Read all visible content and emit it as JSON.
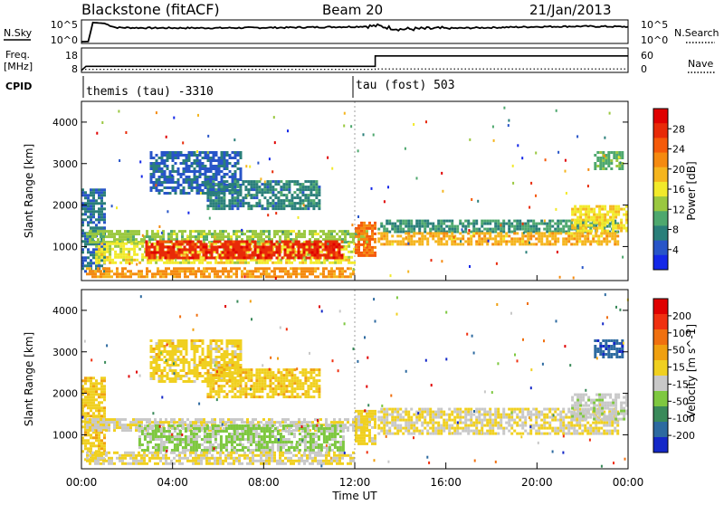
{
  "header": {
    "site": "Blackstone (fitACF)",
    "beam": "Beam 20",
    "date": "21/Jan/2013"
  },
  "strip_labels": {
    "nsky": "N.Sky",
    "nsearch": "N.Search",
    "freq_line1": "Freq.",
    "freq_line2": "[MHz]",
    "nave": "Nave",
    "cpid": "CPID"
  },
  "noise_panel": {
    "left_ticks": [
      "10^5",
      "10^0"
    ],
    "right_ticks": [
      "10^5",
      "10^0"
    ]
  },
  "freq_panel": {
    "left_ticks": [
      "18",
      "8"
    ],
    "right_ticks": [
      "60",
      "0"
    ]
  },
  "cpid_panel": {
    "segments": [
      {
        "label": "themis (tau) -3310",
        "start_hour": 0.0
      },
      {
        "label": "tau (fost) 503",
        "start_hour": 12.0
      }
    ]
  },
  "axes": {
    "ylabel": "Slant Range [km]",
    "xlabel": "Time UT",
    "x_tick_labels": [
      "00:00",
      "04:00",
      "08:00",
      "12:00",
      "16:00",
      "20:00",
      "00:00"
    ],
    "y_tick_labels": [
      "1000",
      "2000",
      "3000",
      "4000"
    ]
  },
  "colorbars": {
    "power": {
      "label": "Power [dB]",
      "tick_labels": [
        "4",
        "8",
        "12",
        "16",
        "20",
        "24",
        "28"
      ],
      "colors": [
        "#1428e8",
        "#2855c8",
        "#2a7f7a",
        "#4ea86e",
        "#9ac840",
        "#f2ea2a",
        "#f5b51e",
        "#f58a10",
        "#f55a0a",
        "#e82a08",
        "#e00000"
      ]
    },
    "velocity": {
      "label": "Velocity [m s^-1]",
      "tick_labels": [
        "200",
        "100",
        "50",
        "15",
        "-15",
        "-50",
        "-100",
        "-200"
      ],
      "colors": [
        "#1428c8",
        "#2d6aa0",
        "#3a8a5a",
        "#7ec840",
        "#c8c8c8",
        "#f0d020",
        "#f0a010",
        "#f07010",
        "#f03010",
        "#e00000"
      ]
    }
  },
  "chart_data": [
    {
      "type": "line",
      "name": "noise",
      "x_range": [
        0,
        24
      ],
      "points": [
        [
          0,
          0.2
        ],
        [
          0.3,
          0.25
        ],
        [
          0.5,
          4.8
        ],
        [
          1.0,
          4.6
        ],
        [
          1.5,
          3.6
        ],
        [
          3,
          3.5
        ],
        [
          6,
          3.5
        ],
        [
          9,
          3.6
        ],
        [
          12,
          3.8
        ],
        [
          13,
          4.0
        ],
        [
          14,
          3.2
        ],
        [
          16,
          3.4
        ],
        [
          18,
          3.6
        ],
        [
          20,
          3.8
        ],
        [
          22,
          3.9
        ],
        [
          24,
          3.8
        ]
      ]
    },
    {
      "type": "line",
      "name": "frequency",
      "x_range": [
        0,
        24
      ],
      "points": [
        [
          0,
          8.5
        ],
        [
          0.2,
          10.5
        ],
        [
          12.9,
          10.5
        ],
        [
          12.9,
          15.5
        ],
        [
          24,
          15.5
        ]
      ],
      "nave_points": [
        [
          0,
          9
        ],
        [
          12.9,
          9
        ],
        [
          12.9,
          9.2
        ],
        [
          24,
          9.2
        ]
      ]
    },
    {
      "type": "heatmap",
      "name": "power",
      "x_range": [
        0,
        24
      ],
      "y_range": [
        180,
        4500
      ],
      "value_range": [
        0,
        30
      ],
      "regions": [
        {
          "t0": 0.0,
          "t1": 1.0,
          "r0": 400,
          "r1": 2400,
          "value": 6
        },
        {
          "t0": 0.2,
          "t1": 12.6,
          "r0": 1100,
          "r1": 1400,
          "value": 12
        },
        {
          "t0": 0.6,
          "t1": 12.0,
          "r0": 600,
          "r1": 1100,
          "value": 15
        },
        {
          "t0": 2.8,
          "t1": 11.5,
          "r0": 700,
          "r1": 1150,
          "value": 26
        },
        {
          "t0": 0.2,
          "t1": 12.0,
          "r0": 300,
          "r1": 500,
          "value": 20
        },
        {
          "t0": 12.0,
          "t1": 12.9,
          "r0": 800,
          "r1": 1600,
          "value": 22
        },
        {
          "t0": 13.0,
          "t1": 23.5,
          "r0": 1350,
          "r1": 1650,
          "value": 8
        },
        {
          "t0": 13.0,
          "t1": 23.5,
          "r0": 1050,
          "r1": 1350,
          "value": 18
        },
        {
          "t0": 21.5,
          "t1": 24.0,
          "r0": 1400,
          "r1": 2000,
          "value": 16
        },
        {
          "t0": 3.0,
          "t1": 7.0,
          "r0": 2300,
          "r1": 3300,
          "value": 5
        },
        {
          "t0": 5.5,
          "t1": 10.5,
          "r0": 1900,
          "r1": 2600,
          "value": 7
        },
        {
          "t0": 22.5,
          "t1": 23.8,
          "r0": 2900,
          "r1": 3300,
          "value": 10
        }
      ]
    },
    {
      "type": "heatmap",
      "name": "velocity",
      "x_range": [
        0,
        24
      ],
      "y_range": [
        180,
        4500
      ],
      "value_range": [
        -250,
        250
      ],
      "regions": [
        {
          "t0": 0.0,
          "t1": 1.0,
          "r0": 400,
          "r1": 2400,
          "value": 30
        },
        {
          "t0": 0.2,
          "t1": 12.6,
          "r0": 1100,
          "r1": 1400,
          "value": -10
        },
        {
          "t0": 2.5,
          "t1": 11.5,
          "r0": 600,
          "r1": 1250,
          "value": -60
        },
        {
          "t0": 0.2,
          "t1": 12.0,
          "r0": 300,
          "r1": 600,
          "value": 0
        },
        {
          "t0": 12.0,
          "t1": 12.9,
          "r0": 800,
          "r1": 1600,
          "value": 20
        },
        {
          "t0": 13.0,
          "t1": 23.5,
          "r0": 1050,
          "r1": 1650,
          "value": 0
        },
        {
          "t0": 21.5,
          "t1": 24.0,
          "r0": 1400,
          "r1": 2000,
          "value": -30
        },
        {
          "t0": 3.0,
          "t1": 7.0,
          "r0": 2300,
          "r1": 3300,
          "value": 25
        },
        {
          "t0": 5.5,
          "t1": 10.5,
          "r0": 1900,
          "r1": 2600,
          "value": 30
        },
        {
          "t0": 22.5,
          "t1": 23.8,
          "r0": 2900,
          "r1": 3300,
          "value": -180
        }
      ]
    }
  ]
}
